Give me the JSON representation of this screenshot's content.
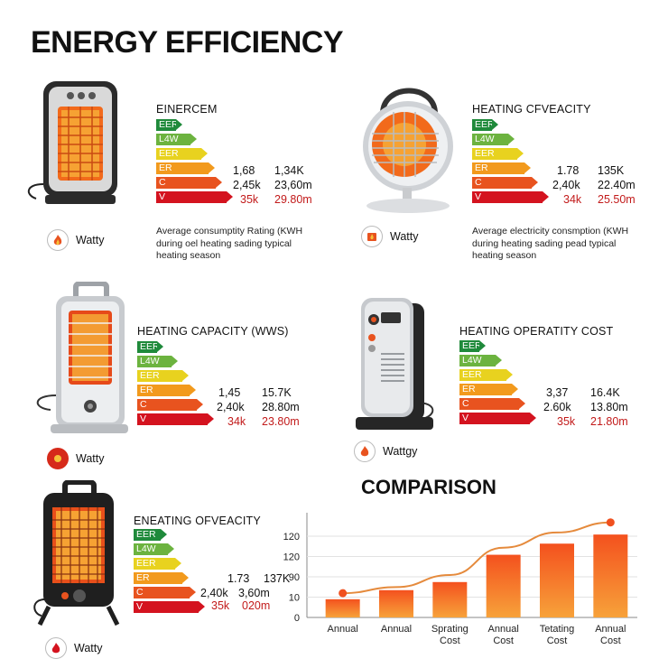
{
  "page": {
    "title": "ENERGY EFFICIENCY"
  },
  "energy_class_labels": [
    "EER",
    "L4W",
    "EER",
    "ER",
    "C",
    "V"
  ],
  "energy_class_colors": [
    "#1f8a3b",
    "#6cb33f",
    "#e8d21f",
    "#f29a1d",
    "#e8531f",
    "#d4131f"
  ],
  "cards": [
    {
      "title": "EINERCEM",
      "values": [
        [
          "1,68",
          "1,34K"
        ],
        [
          "2,45k",
          "23,60m"
        ],
        [
          "35k",
          "29.80m"
        ]
      ],
      "description": "Average consumptity Rating (KWH during oel heating sading typical heating season",
      "brand": "Watty",
      "brand_icon": "flame-icon"
    },
    {
      "title": "HEATING CFVEACITY",
      "values": [
        [
          "1.78",
          "135K"
        ],
        [
          "2,40k",
          "22.40m"
        ],
        [
          "34k",
          "25.50m"
        ]
      ],
      "description": "Average electricity consmption (KWH during heating sading pead typical heating season",
      "brand": "Watty",
      "brand_icon": "flame-icon"
    },
    {
      "title": "HEATING CAPACITY (WWS)",
      "values": [
        [
          "1,45",
          "15.7K"
        ],
        [
          "2,40k",
          "28.80m"
        ],
        [
          "34k",
          "23.80m"
        ]
      ],
      "brand": "Watty",
      "brand_icon": "flame-icon"
    },
    {
      "title": "HEATING OPERATITY COST",
      "values": [
        [
          "3,37",
          "16.4K"
        ],
        [
          "2.60k",
          "13.80m"
        ],
        [
          "35k",
          "21.80m"
        ]
      ],
      "brand": "Wattgy",
      "brand_icon": "flame-icon"
    },
    {
      "title": "ENEATING OFVEACITY",
      "values": [
        [
          "1.73",
          "137K"
        ],
        [
          "2,40k",
          "3,60m"
        ],
        [
          "35k",
          "020m"
        ]
      ],
      "brand": "Watty",
      "brand_icon": "flame-icon"
    }
  ],
  "comparison": {
    "title": "COMPARISON"
  },
  "chart_data": {
    "type": "bar",
    "title": "COMPARISON",
    "y_tick_labels": [
      "120",
      "120",
      "90",
      "10",
      "0"
    ],
    "categories": [
      "Annual",
      "Annual",
      "Sprating Cost",
      "Annual Cost",
      "Tetating Cost",
      "Annual Cost"
    ],
    "values": [
      18,
      27,
      35,
      62,
      73,
      82
    ],
    "line_values": [
      24,
      30,
      42,
      69,
      84,
      94
    ],
    "ylim": [
      0,
      100
    ],
    "bar_color": "#f0501e",
    "line_color": "#e58a3c",
    "grid": true
  }
}
